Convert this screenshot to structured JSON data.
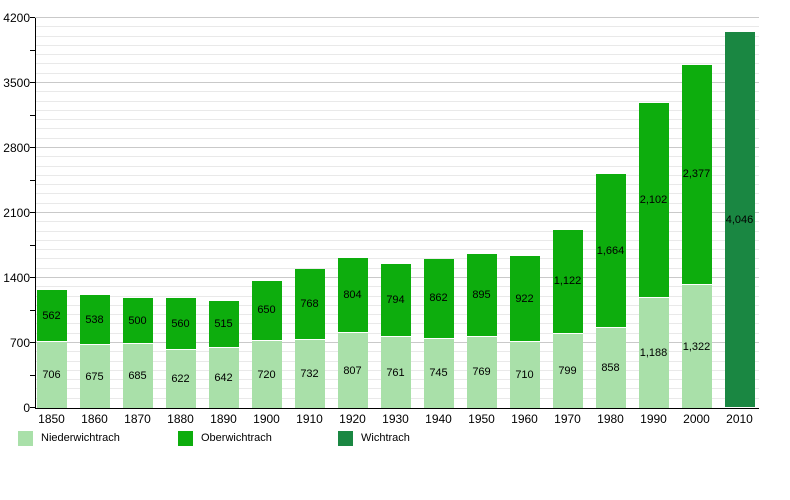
{
  "chart_data": {
    "type": "bar",
    "stacked": true,
    "title": "",
    "xlabel": "",
    "ylabel": "",
    "categories": [
      "1850",
      "1860",
      "1870",
      "1880",
      "1890",
      "1900",
      "1910",
      "1920",
      "1930",
      "1940",
      "1950",
      "1960",
      "1970",
      "1980",
      "1990",
      "2000",
      "2010"
    ],
    "series": [
      {
        "name": "Niederwichtrach",
        "color": "#a9e0a9",
        "values": [
          706,
          675,
          685,
          622,
          642,
          720,
          732,
          807,
          761,
          745,
          769,
          710,
          799,
          858,
          1188,
          1322,
          null
        ]
      },
      {
        "name": "Oberwichtrach",
        "color": "#0dad0d",
        "values": [
          562,
          538,
          500,
          560,
          515,
          650,
          768,
          804,
          794,
          862,
          895,
          922,
          1122,
          1664,
          2102,
          2377,
          null
        ]
      },
      {
        "name": "Wichtrach",
        "color": "#1a8742",
        "values": [
          null,
          null,
          null,
          null,
          null,
          null,
          null,
          null,
          null,
          null,
          null,
          null,
          null,
          null,
          null,
          null,
          4046
        ]
      }
    ],
    "ylim": [
      0,
      4200
    ],
    "y_label_step": 700,
    "y_tick_step": 350,
    "y_grid_step": 100,
    "grid": true,
    "legend_position": "bottom",
    "bar_labels_shown": true,
    "colors": {
      "grid_minor": "#e9e9e9",
      "grid_major": "#c9c9c9",
      "axis": "#000000",
      "label_text": "#000000",
      "background": "#ffffff"
    }
  },
  "legend": {
    "items": [
      {
        "label": "Niederwichtrach",
        "color": "#a9e0a9"
      },
      {
        "label": "Oberwichtrach",
        "color": "#0dad0d"
      },
      {
        "label": "Wichtrach",
        "color": "#1a8742"
      }
    ]
  }
}
